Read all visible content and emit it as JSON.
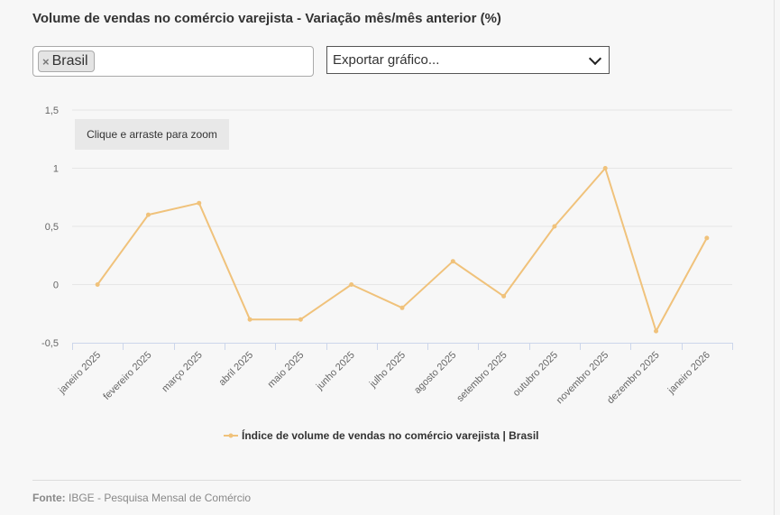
{
  "title": "Volume de vendas no comércio varejista - Variação mês/mês anterior (%)",
  "selector": {
    "chip_label": "Brasil",
    "chip_remove": "×"
  },
  "export": {
    "label": "Exportar gráfico..."
  },
  "zoom_hint": "Clique e arraste para zoom",
  "source": {
    "label": "Fonte:",
    "text": "IBGE - Pesquisa Mensal de Comércio"
  },
  "colors": {
    "series": "#f0c27b",
    "grid": "#e6e6e6",
    "axis": "#ccd6eb"
  },
  "chart_data": {
    "type": "line",
    "categories": [
      "janeiro 2025",
      "fevereiro 2025",
      "março 2025",
      "abril 2025",
      "maio 2025",
      "junho 2025",
      "julho 2025",
      "agosto 2025",
      "setembro 2025",
      "outubro 2025",
      "novembro 2025",
      "dezembro 2025",
      "janeiro 2026"
    ],
    "series": [
      {
        "name": "Índice de volume de vendas no comércio varejista | Brasil",
        "values": [
          0,
          0.6,
          0.7,
          -0.3,
          -0.3,
          0,
          -0.2,
          0.2,
          -0.1,
          0.5,
          1,
          -0.4,
          0.4
        ]
      }
    ],
    "yticks": [
      "1,5",
      "1",
      "0,5",
      "0",
      "-0,5"
    ],
    "ytick_values": [
      1.5,
      1,
      0.5,
      0,
      -0.5
    ],
    "ylim": [
      -0.5,
      1.5
    ],
    "grid": true,
    "legend": "bottom-center"
  }
}
